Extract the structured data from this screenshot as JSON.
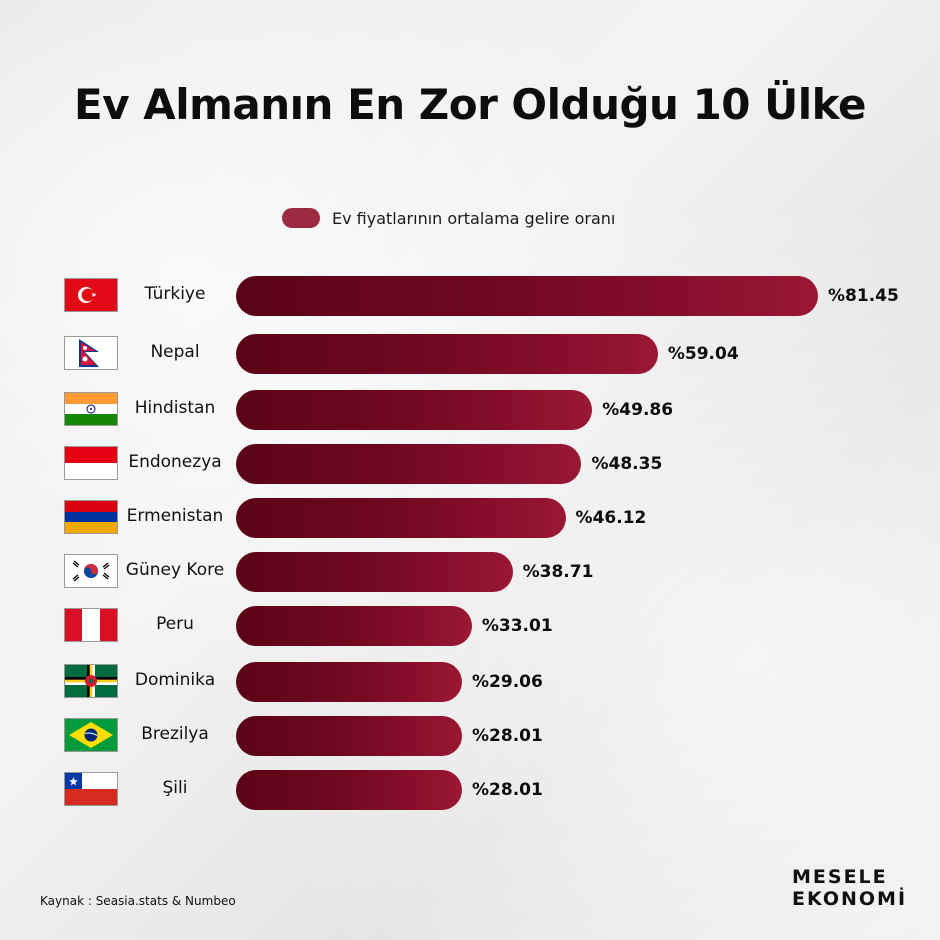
{
  "title": "Ev Almanın En Zor Olduğu 10 Ülke",
  "legend": {
    "label": "Ev fiyatlarının ortalama gelire oranı",
    "color": "#9c2a40"
  },
  "source": "Kaynak : Seasia.stats & Numbeo",
  "brand": {
    "line1": "MESELE",
    "line2": "EKONOMİ"
  },
  "chart_data": {
    "type": "bar",
    "orientation": "horizontal",
    "categories": [
      "Türkiye",
      "Nepal",
      "Hindistan",
      "Endonezya",
      "Ermenistan",
      "Güney Kore",
      "Peru",
      "Dominika",
      "Brezilya",
      "Şili"
    ],
    "values": [
      81.45,
      59.04,
      49.86,
      48.35,
      46.12,
      38.71,
      33.01,
      29.06,
      28.01,
      28.01
    ],
    "value_labels": [
      "%81.45",
      "%59.04",
      "%49.86",
      "%48.35",
      "%46.12",
      "%38.71",
      "%33.01",
      "%29.06",
      "%28.01",
      "%28.01"
    ],
    "series": [
      {
        "name": "Ev fiyatlarının ortalama gelire oranı",
        "color": "#7a0a24"
      }
    ],
    "title": "Ev Almanın En Zor Olduğu 10 Ülke",
    "xlim": [
      0,
      81.45
    ],
    "grid": false,
    "legend_position": "top-center"
  },
  "flags": [
    "turkey-flag-icon",
    "nepal-flag-icon",
    "india-flag-icon",
    "indonesia-flag-icon",
    "armenia-flag-icon",
    "south-korea-flag-icon",
    "peru-flag-icon",
    "dominica-flag-icon",
    "brazil-flag-icon",
    "chile-flag-icon"
  ]
}
